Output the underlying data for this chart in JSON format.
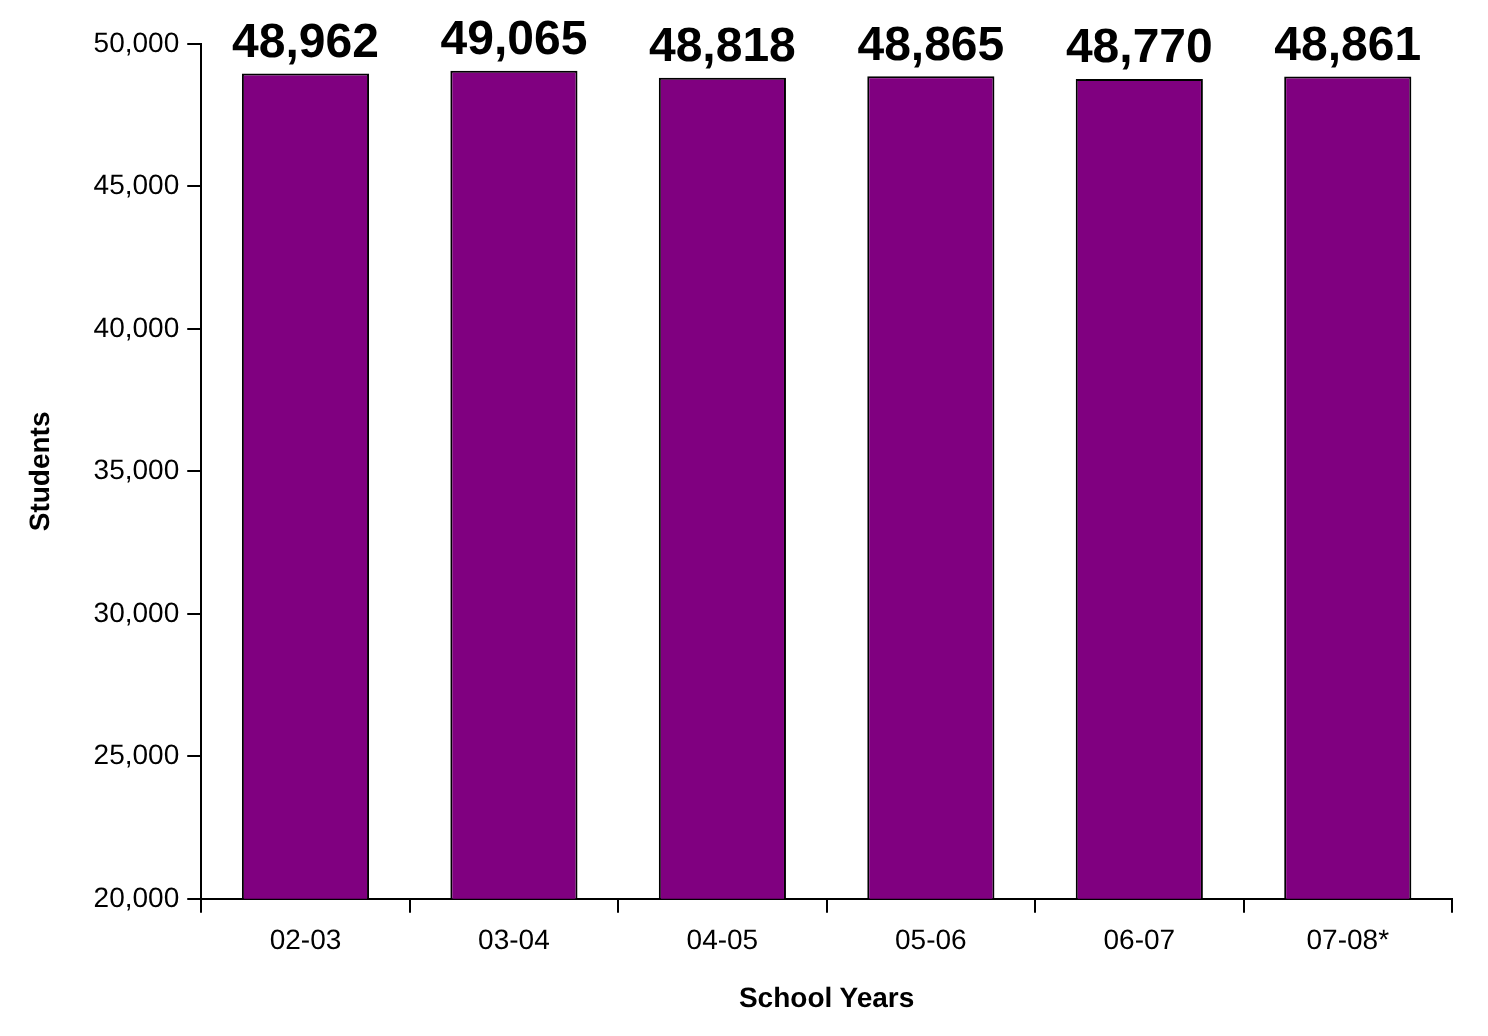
{
  "chart_data": {
    "type": "bar",
    "xlabel": "School Years",
    "ylabel": "Students",
    "categories": [
      "02-03",
      "03-04",
      "04-05",
      "05-06",
      "06-07",
      "07-08*"
    ],
    "values": [
      48962,
      49065,
      48818,
      48865,
      48770,
      48861
    ],
    "value_labels": [
      "48,962",
      "49,065",
      "48,818",
      "48,865",
      "48,770",
      "48,861"
    ],
    "color": "#800080",
    "ylim": [
      20000,
      50000
    ],
    "yticks": [
      {
        "value": 20000,
        "label": "20,000"
      },
      {
        "value": 25000,
        "label": "25,000"
      },
      {
        "value": 30000,
        "label": "30,000"
      },
      {
        "value": 35000,
        "label": "35,000"
      },
      {
        "value": 40000,
        "label": "40,000"
      },
      {
        "value": 45000,
        "label": "45,000"
      },
      {
        "value": 50000,
        "label": "50,000"
      }
    ],
    "grid": false,
    "legend": false
  }
}
